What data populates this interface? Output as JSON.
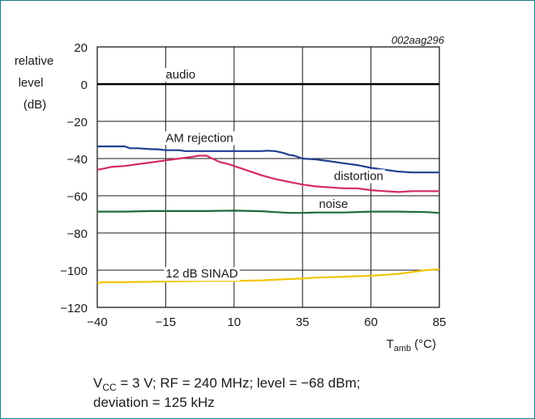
{
  "chart_data": {
    "type": "line",
    "figure_id": "002aag296",
    "ylabel": [
      "relative",
      "level",
      "(dB)"
    ],
    "xlabel": {
      "main": "T",
      "sub": "amb",
      "unit": "(°C)"
    },
    "xlim": [
      -40,
      85
    ],
    "ylim": [
      -120,
      20
    ],
    "xticks": [
      -40,
      -15,
      10,
      35,
      60,
      85
    ],
    "yticks": [
      20,
      0,
      -20,
      -40,
      -60,
      -80,
      -100,
      -120
    ],
    "grid": true,
    "series": [
      {
        "name": "audio",
        "color": "#000000",
        "x": [
          -40,
          85
        ],
        "y": [
          0,
          0
        ]
      },
      {
        "name": "AM rejection",
        "color": "#1f3f8f",
        "x": [
          -40,
          -30,
          -28,
          -25,
          -20,
          -18,
          -15,
          -10,
          -8,
          0,
          5,
          10,
          15,
          20,
          22,
          25,
          28,
          30,
          32,
          35,
          40,
          45,
          50,
          55,
          60,
          65,
          70,
          75,
          80,
          85
        ],
        "y": [
          -33.5,
          -33.5,
          -34.5,
          -34.5,
          -35,
          -35,
          -35.5,
          -35.5,
          -36,
          -36,
          -36,
          -36,
          -36,
          -36,
          -35.8,
          -36,
          -37,
          -38,
          -38.5,
          -40,
          -40.5,
          -41.5,
          -42.5,
          -43.5,
          -45,
          -46,
          -47,
          -47.5,
          -47.5,
          -47.5
        ]
      },
      {
        "name": "distortion",
        "color": "#d42a5f",
        "x": [
          -40,
          -38,
          -35,
          -30,
          -25,
          -20,
          -15,
          -10,
          -5,
          -3,
          0,
          2,
          5,
          8,
          10,
          15,
          20,
          25,
          30,
          35,
          40,
          45,
          50,
          55,
          60,
          65,
          70,
          75,
          80,
          85
        ],
        "y": [
          -46,
          -45.5,
          -44.5,
          -44,
          -43,
          -42,
          -41,
          -40,
          -39,
          -38.5,
          -38.5,
          -40,
          -42,
          -43,
          -44,
          -46.5,
          -49,
          -51,
          -52.5,
          -54,
          -55,
          -55.5,
          -56,
          -56,
          -57,
          -57.5,
          -58,
          -57.5,
          -57.5,
          -57.5
        ]
      },
      {
        "name": "noise",
        "color": "#1a6b3c",
        "x": [
          -40,
          -30,
          -20,
          -10,
          0,
          10,
          20,
          25,
          30,
          35,
          40,
          50,
          60,
          70,
          80,
          85
        ],
        "y": [
          -68.5,
          -68.5,
          -68.2,
          -68.2,
          -68.2,
          -68,
          -68.3,
          -68.8,
          -69.2,
          -69.2,
          -69,
          -69,
          -68.5,
          -68.5,
          -68.8,
          -69.2
        ]
      },
      {
        "name": "12 dB SINAD",
        "color": "#f2c500",
        "x": [
          -40,
          -38,
          -30,
          -20,
          -10,
          0,
          10,
          20,
          30,
          35,
          40,
          50,
          60,
          65,
          70,
          75,
          80,
          85
        ],
        "y": [
          -107,
          -106.5,
          -106.5,
          -106.2,
          -106,
          -105.8,
          -105.8,
          -105.5,
          -104.8,
          -104.5,
          -104,
          -103.5,
          -103,
          -102.5,
          -102,
          -101,
          -100,
          -99.5
        ]
      }
    ],
    "labels": [
      {
        "text": "audio",
        "x": -15,
        "y": 3
      },
      {
        "text": "AM rejection",
        "x": -15,
        "y": -31
      },
      {
        "text": "distortion",
        "x": 46.5,
        "y": -51.5
      },
      {
        "text": "noise",
        "x": 41,
        "y": -66.5
      },
      {
        "text": "12 dB SINAD",
        "x": -15,
        "y": -104
      }
    ]
  },
  "caption": {
    "line1": {
      "v": "V",
      "v_sub": "CC",
      "rest": " = 3 V; RF = 240 MHz; level = −68 dBm;"
    },
    "line2": "deviation = 125 kHz"
  }
}
